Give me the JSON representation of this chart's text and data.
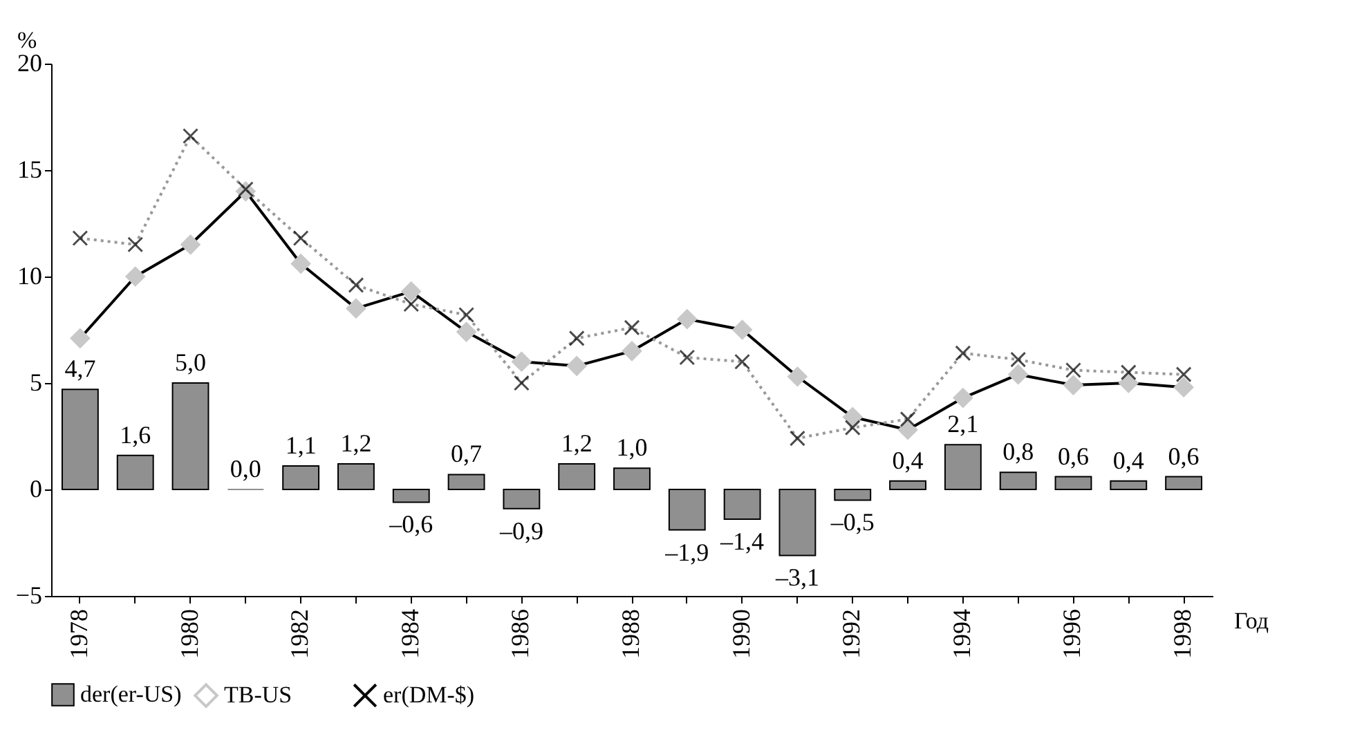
{
  "chart_data": {
    "type": "bar",
    "ylabel": "%",
    "xlabel": "Год",
    "categories": [
      "1978",
      null,
      "1980",
      null,
      "1982",
      null,
      "1984",
      null,
      "1986",
      null,
      "1988",
      null,
      "1990",
      null,
      "1992",
      null,
      "1994",
      null,
      "1996",
      null,
      "1998"
    ],
    "ylim": [
      -5,
      20
    ],
    "yticks": [
      -5,
      0,
      5,
      10,
      15,
      20
    ],
    "grid": false,
    "legend": "bottom",
    "series": [
      {
        "name": "der(er-US)",
        "color": "#909090",
        "values": [
          4.7,
          1.6,
          5.0,
          0.0,
          1.1,
          1.2,
          -0.6,
          0.7,
          -0.9,
          1.2,
          1.0,
          -1.9,
          -1.4,
          -3.1,
          -0.5,
          0.4,
          2.1,
          0.8,
          0.6,
          0.4,
          0.6
        ],
        "value_labels": [
          "4,7",
          "1,6",
          "5,0",
          "0,0",
          "1,1",
          "1,2",
          "–0,6",
          "0,7",
          "–0,9",
          "1,2",
          "1,0",
          "–1,9",
          "–1,4",
          "–3,1",
          "–0,5",
          "0,4",
          "2,1",
          "0,8",
          "0,6",
          "0,4",
          "0,6"
        ]
      },
      {
        "name": "TB-US",
        "type": "line",
        "color": "#000000",
        "marker": "diamond",
        "line_style": "solid",
        "values": [
          7.1,
          10.0,
          11.5,
          14.0,
          10.6,
          8.5,
          9.3,
          7.4,
          6.0,
          5.8,
          6.5,
          8.0,
          7.5,
          5.3,
          3.4,
          2.8,
          4.3,
          5.4,
          4.9,
          5.0,
          4.8
        ]
      },
      {
        "name": "er(DM-$)",
        "type": "line",
        "color": "#999999",
        "marker": "cross",
        "line_style": "dotted",
        "values": [
          11.8,
          11.5,
          16.6,
          14.1,
          11.8,
          9.6,
          8.7,
          8.2,
          5.0,
          7.1,
          7.6,
          6.2,
          6.0,
          2.4,
          2.9,
          3.3,
          6.4,
          6.1,
          5.6,
          5.5,
          5.4
        ]
      }
    ]
  }
}
